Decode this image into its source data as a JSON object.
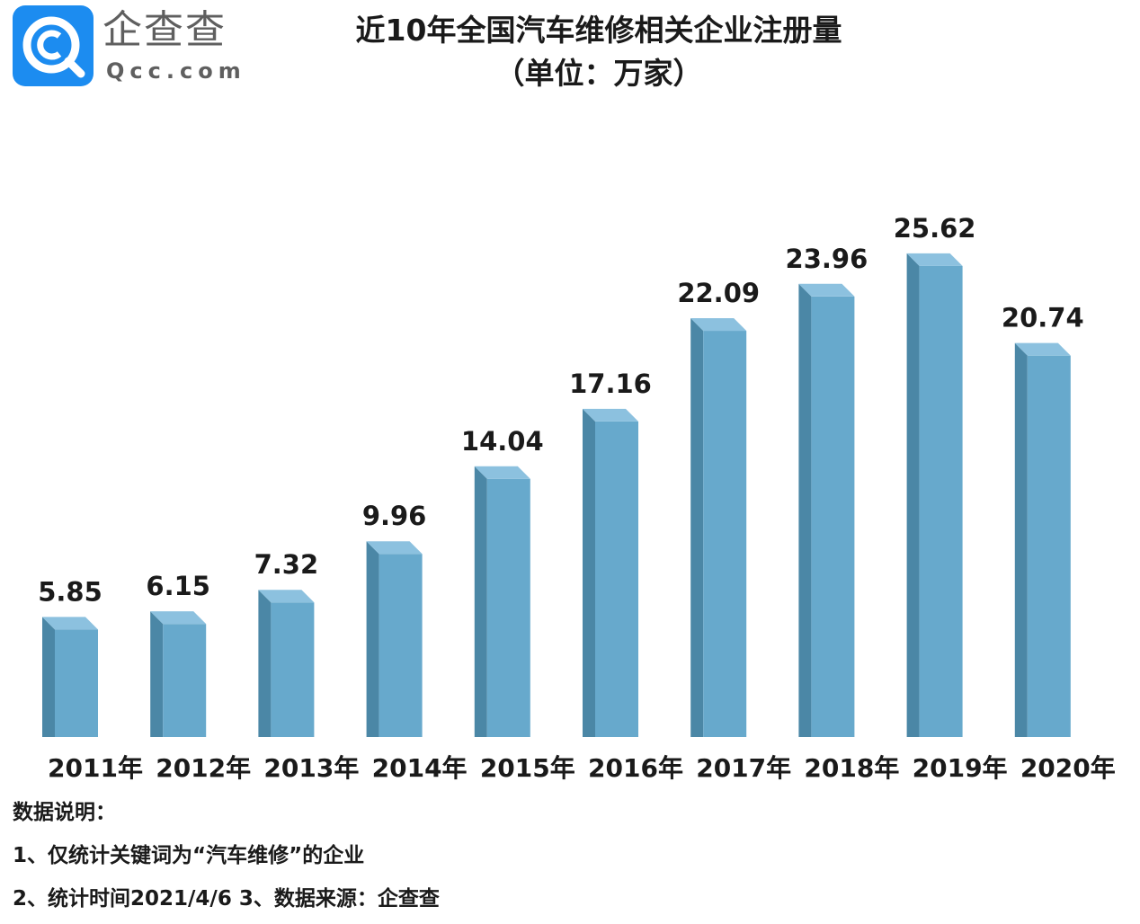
{
  "logo": {
    "name": "企查查",
    "domain": "Qcc.com",
    "badge_color": "#1c8cf0"
  },
  "chart_data": {
    "type": "bar",
    "title": "近10年全国汽车维修相关企业注册量",
    "subtitle": "（单位：万家）",
    "categories": [
      "2011年",
      "2012年",
      "2013年",
      "2014年",
      "2015年",
      "2016年",
      "2017年",
      "2018年",
      "2019年",
      "2020年"
    ],
    "values": [
      5.85,
      6.15,
      7.32,
      9.96,
      14.04,
      17.16,
      22.09,
      23.96,
      25.62,
      20.74
    ],
    "value_labels": [
      "5.85",
      "6.15",
      "7.32",
      "9.96",
      "14.04",
      "17.16",
      "22.09",
      "23.96",
      "25.62",
      "20.74"
    ],
    "ylim": [
      0,
      28
    ],
    "grid": false,
    "legend": "none",
    "bar_color": "#67a9cc",
    "bar_side_color": "#4b87a6",
    "bar_top_color": "#8cc1df"
  },
  "notes": {
    "heading": "数据说明：",
    "line1": "1、仅统计关键词为“汽车维修”的企业",
    "line2": "2、统计时间2021/4/6   3、数据来源：企查查"
  }
}
